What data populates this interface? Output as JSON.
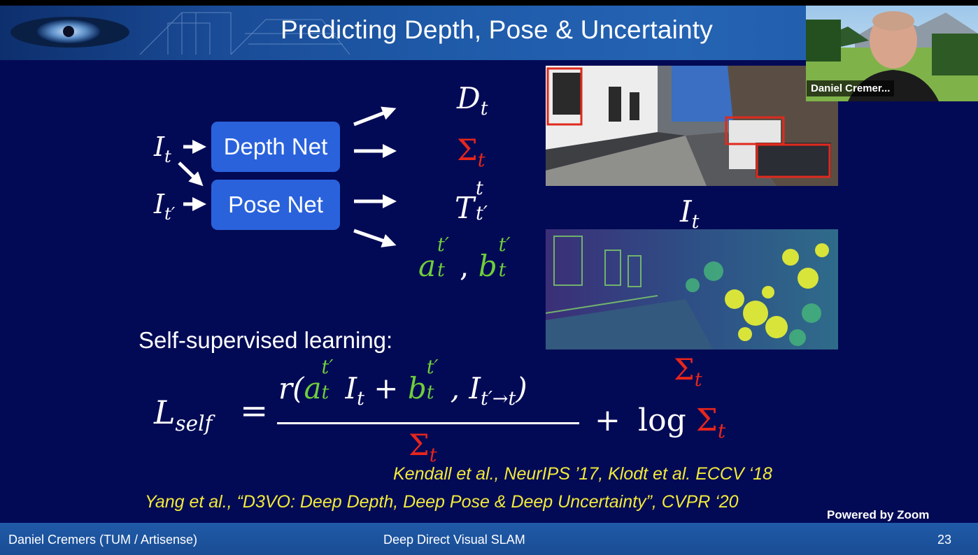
{
  "slide": {
    "title": "Predicting Depth, Pose & Uncertainty",
    "depth_net_label": "Depth Net",
    "pose_net_label": "Pose Net",
    "input_t": "I",
    "input_t_sub": "t",
    "input_tp": "I",
    "input_tp_sub": "t′",
    "out_depth": "D",
    "out_depth_sub": "t",
    "out_sigma": "Σ",
    "out_sigma_sub": "t",
    "out_pose": "T",
    "out_pose_sup": "t",
    "out_pose_sub": "t′",
    "out_ab_a": "a",
    "out_ab_b": "b",
    "out_ab_sup": "t′",
    "out_ab_sub": "t",
    "image_label": "I",
    "image_label_sub": "t",
    "uncertainty_label": "Σ",
    "uncertainty_label_sub": "t",
    "self_supervised_label": "Self-supervised learning:",
    "loss": {
      "lhs": "L",
      "lhs_sub": "self",
      "equals": "=",
      "num_r": "r(",
      "num_a": "a",
      "num_I": "I",
      "num_plus": "+",
      "num_b": "b",
      "num_comma_I": ", I",
      "num_warp_sub": "t′→t",
      "num_close": ")",
      "sup_tp": "t′",
      "sub_t": "t",
      "den": "Σ",
      "den_sub": "t",
      "plus": "+",
      "log": "log",
      "log_sigma": "Σ",
      "log_sigma_sub": "t"
    },
    "ref1": "Kendall et al., NeurIPS ’17, Klodt et al. ECCV ‘18",
    "ref2": "Yang et al., “D3VO: Deep Depth, Deep Pose & Deep Uncertainty”, CVPR ‘20"
  },
  "footer": {
    "author": "Daniel Cremers (TUM / Artisense)",
    "talk": "Deep Direct Visual SLAM",
    "page": "23"
  },
  "zoom": {
    "powered": "Powered by Zoom",
    "participant_name": "Daniel Cremer..."
  },
  "colors": {
    "background": "#030a55",
    "red": "#e8261c",
    "green": "#6fce3a",
    "reference_yellow": "#f2ea3a",
    "net_box": "#2a62dc"
  }
}
